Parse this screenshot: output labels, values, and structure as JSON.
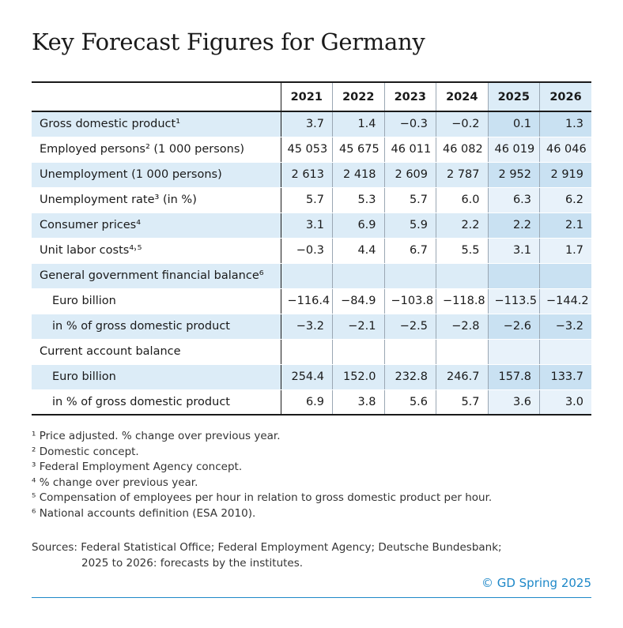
{
  "title": "Key Forecast Figures for Germany",
  "table": {
    "years": [
      "2021",
      "2022",
      "2023",
      "2024",
      "2025",
      "2026"
    ],
    "rows": [
      {
        "label": "Gross domestic product¹",
        "indent": false,
        "values": [
          "3.7",
          "1.4",
          "−0.3",
          "−0.2",
          "0.1",
          "1.3"
        ]
      },
      {
        "label": "Employed persons² (1 000 persons)",
        "indent": false,
        "values": [
          "45 053",
          "45 675",
          "46 011",
          "46 082",
          "46 019",
          "46 046"
        ]
      },
      {
        "label": "Unemployment (1 000 persons)",
        "indent": false,
        "values": [
          "2 613",
          "2 418",
          "2 609",
          "2 787",
          "2 952",
          "2 919"
        ]
      },
      {
        "label": "Unemployment rate³ (in %)",
        "indent": false,
        "values": [
          "5.7",
          "5.3",
          "5.7",
          "6.0",
          "6.3",
          "6.2"
        ]
      },
      {
        "label": "Consumer prices⁴",
        "indent": false,
        "values": [
          "3.1",
          "6.9",
          "5.9",
          "2.2",
          "2.2",
          "2.1"
        ]
      },
      {
        "label": "Unit labor costs⁴˒⁵",
        "indent": false,
        "values": [
          "−0.3",
          "4.4",
          "6.7",
          "5.5",
          "3.1",
          "1.7"
        ]
      },
      {
        "label": "General government financial balance⁶",
        "indent": false,
        "values": [
          "",
          "",
          "",
          "",
          "",
          ""
        ]
      },
      {
        "label": "Euro billion",
        "indent": true,
        "values": [
          "−116.4",
          "−84.9",
          "−103.8",
          "−118.8",
          "−113.5",
          "−144.2"
        ]
      },
      {
        "label": "in % of gross domestic product",
        "indent": true,
        "values": [
          "−3.2",
          "−2.1",
          "−2.5",
          "−2.8",
          "−2.6",
          "−3.2"
        ]
      },
      {
        "label": "Current account balance",
        "indent": false,
        "values": [
          "",
          "",
          "",
          "",
          "",
          ""
        ]
      },
      {
        "label": "Euro billion",
        "indent": true,
        "values": [
          "254.4",
          "152.0",
          "232.8",
          "246.7",
          "157.8",
          "133.7"
        ]
      },
      {
        "label": "in % of gross domestic product",
        "indent": true,
        "values": [
          "6.9",
          "3.8",
          "5.6",
          "5.7",
          "3.6",
          "3.0"
        ]
      }
    ]
  },
  "footnotes": [
    "¹ Price adjusted. % change over previous year.",
    "² Domestic concept.",
    "³ Federal Employment Agency concept.",
    "⁴ % change over previous year.",
    "⁵ Compensation of employees per hour in relation to gross domestic product per hour.",
    "⁶ National accounts definition (ESA 2010)."
  ],
  "sources": {
    "line1": "Sources: Federal Statistical Office; Federal Employment Agency; Deutsche Bundesbank;",
    "line2": "2025 to 2026: forecasts by the institutes."
  },
  "copyright": "© GD Spring 2025",
  "colors": {
    "band": "#dcecf7",
    "forecast_band": "#c9e1f2",
    "accent": "#1e88c8"
  }
}
